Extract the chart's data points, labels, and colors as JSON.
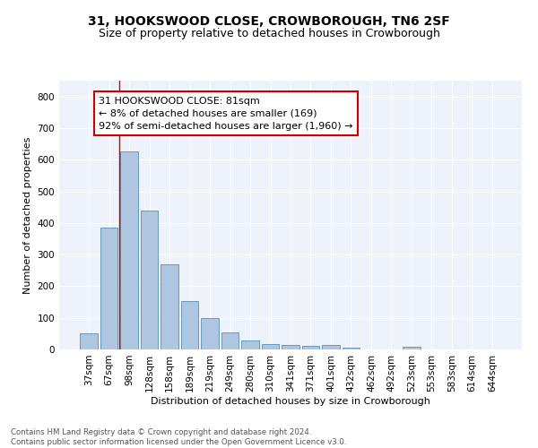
{
  "title": "31, HOOKSWOOD CLOSE, CROWBOROUGH, TN6 2SF",
  "subtitle": "Size of property relative to detached houses in Crowborough",
  "xlabel": "Distribution of detached houses by size in Crowborough",
  "ylabel": "Number of detached properties",
  "categories": [
    "37sqm",
    "67sqm",
    "98sqm",
    "128sqm",
    "158sqm",
    "189sqm",
    "219sqm",
    "249sqm",
    "280sqm",
    "310sqm",
    "341sqm",
    "371sqm",
    "401sqm",
    "432sqm",
    "462sqm",
    "492sqm",
    "523sqm",
    "553sqm",
    "583sqm",
    "614sqm",
    "644sqm"
  ],
  "values": [
    50,
    385,
    625,
    440,
    268,
    153,
    100,
    53,
    28,
    18,
    13,
    12,
    15,
    7,
    0,
    0,
    8,
    0,
    0,
    0,
    0
  ],
  "bar_color": "#aec6df",
  "bar_edge_color": "#6699bb",
  "vline_x": 1.5,
  "vline_color": "#cc0000",
  "annotation_text": "31 HOOKSWOOD CLOSE: 81sqm\n← 8% of detached houses are smaller (169)\n92% of semi-detached houses are larger (1,960) →",
  "annotation_box_color": "#ffffff",
  "annotation_box_edge_color": "#cc0000",
  "ylim": [
    0,
    850
  ],
  "yticks": [
    0,
    100,
    200,
    300,
    400,
    500,
    600,
    700,
    800
  ],
  "background_color": "#eef2fa",
  "footer_text": "Contains HM Land Registry data © Crown copyright and database right 2024.\nContains public sector information licensed under the Open Government Licence v3.0.",
  "title_fontsize": 10,
  "subtitle_fontsize": 9,
  "axis_label_fontsize": 8,
  "tick_fontsize": 7.5,
  "annotation_fontsize": 8
}
